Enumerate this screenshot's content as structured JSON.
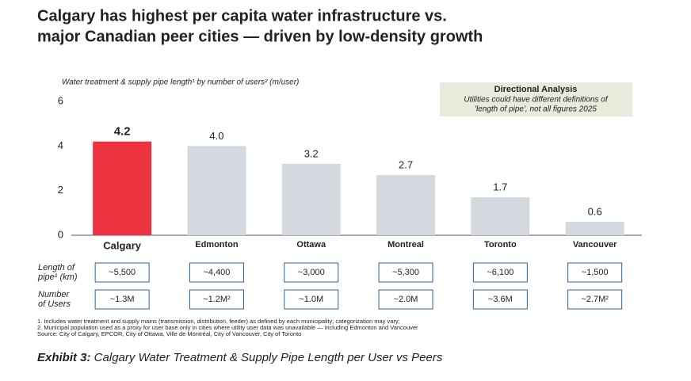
{
  "chart_data": {
    "type": "bar",
    "title": [
      "Calgary has highest per capita water infrastructure vs.",
      "major Canadian peer cities — driven by low-density growth"
    ],
    "y_axis_label": "Water treatment & supply pipe length¹ by number of users² (m/user)",
    "annotation": {
      "title": "Directional Analysis",
      "lines": [
        "Utilities could have different definitions of",
        "'length of pipe', not all figures 2025"
      ]
    },
    "categories": [
      "Calgary",
      "Edmonton",
      "Ottawa",
      "Montreal",
      "Toronto",
      "Vancouver"
    ],
    "values": [
      4.2,
      4.0,
      3.2,
      2.7,
      1.7,
      0.6
    ],
    "value_labels": [
      "4.2",
      "4.0",
      "3.2",
      "2.7",
      "1.7",
      "0.6"
    ],
    "colors": [
      "#ee3340",
      "#d3d9df",
      "#d3d9df",
      "#d3d9df",
      "#d3d9df",
      "#d3d9df"
    ],
    "ylim": [
      0,
      6
    ],
    "yticks": [
      0,
      2,
      4,
      6
    ],
    "table": [
      {
        "label": [
          "Length of",
          "pipe¹ (km)"
        ],
        "cells": [
          "~5,500",
          "~4,400",
          "~3,000",
          "~5,300",
          "~6,100",
          "~1,500"
        ]
      },
      {
        "label": [
          "Number",
          "of Users"
        ],
        "cells": [
          "~1.3M",
          "~1.2M²",
          "~1.0M",
          "~2.0M",
          "~3.6M",
          "~2.7M²"
        ]
      }
    ],
    "footnotes": [
      "1. Includes water treatment and supply mains (transmission, distribution, feeder) as defined by each municipality; categorization may vary;",
      "2. Municipal population used as a proxy for user base only in cities where utility user data was unavailable — including Edmonton and Vancouver",
      "Source: City of Calgary, EPCOR, City of Ottawa, Ville de Montréal, City of Vancouver, City of Toronto"
    ],
    "caption": {
      "lead": "Exhibit 3:",
      "text": " Calgary Water Treatment & Supply Pipe Length per User vs Peers"
    }
  }
}
